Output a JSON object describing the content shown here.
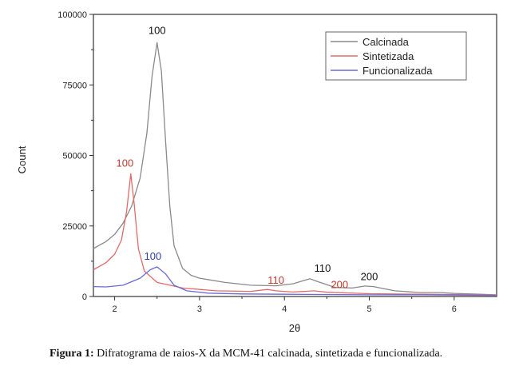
{
  "chart_data": {
    "type": "line",
    "xlabel": "2θ",
    "ylabel": "Count",
    "xlim": [
      1.75,
      6.5
    ],
    "ylim": [
      0,
      100000
    ],
    "x_ticks": [
      2,
      3,
      4,
      5,
      6
    ],
    "y_ticks": [
      0,
      25000,
      50000,
      75000,
      100000
    ],
    "y_tick_labels": [
      "0",
      "25000",
      "50000",
      "75000",
      "100000"
    ],
    "grid": false,
    "legend_position": "top-right",
    "series": [
      {
        "name": "Calcinada",
        "color": "#8a8a8a",
        "points": [
          [
            1.75,
            17000
          ],
          [
            1.9,
            19500
          ],
          [
            2.0,
            22000
          ],
          [
            2.1,
            26000
          ],
          [
            2.2,
            32000
          ],
          [
            2.3,
            42000
          ],
          [
            2.38,
            58000
          ],
          [
            2.44,
            78000
          ],
          [
            2.5,
            90000
          ],
          [
            2.55,
            80000
          ],
          [
            2.6,
            55000
          ],
          [
            2.65,
            32000
          ],
          [
            2.7,
            18000
          ],
          [
            2.8,
            10000
          ],
          [
            2.9,
            7500
          ],
          [
            3.0,
            6500
          ],
          [
            3.3,
            5000
          ],
          [
            3.6,
            4000
          ],
          [
            3.9,
            3800
          ],
          [
            4.1,
            4500
          ],
          [
            4.3,
            6300
          ],
          [
            4.4,
            5200
          ],
          [
            4.6,
            3200
          ],
          [
            4.8,
            3000
          ],
          [
            4.95,
            3700
          ],
          [
            5.05,
            3500
          ],
          [
            5.3,
            2000
          ],
          [
            5.6,
            1400
          ],
          [
            5.85,
            1400
          ],
          [
            6.0,
            1100
          ],
          [
            6.3,
            800
          ],
          [
            6.5,
            600
          ]
        ]
      },
      {
        "name": "Sintetizada",
        "color": "#e36a6a",
        "points": [
          [
            1.75,
            9500
          ],
          [
            1.9,
            12000
          ],
          [
            2.0,
            15000
          ],
          [
            2.08,
            20000
          ],
          [
            2.14,
            30000
          ],
          [
            2.19,
            43500
          ],
          [
            2.23,
            33000
          ],
          [
            2.28,
            17000
          ],
          [
            2.35,
            9000
          ],
          [
            2.5,
            5000
          ],
          [
            2.8,
            3000
          ],
          [
            3.2,
            2000
          ],
          [
            3.6,
            1800
          ],
          [
            3.8,
            2500
          ],
          [
            3.9,
            2000
          ],
          [
            4.1,
            1600
          ],
          [
            4.35,
            2000
          ],
          [
            4.5,
            1500
          ],
          [
            5.0,
            1000
          ],
          [
            5.6,
            800
          ],
          [
            6.0,
            700
          ],
          [
            6.5,
            500
          ]
        ]
      },
      {
        "name": "Funcionalizada",
        "color": "#6b6bd6",
        "points": [
          [
            1.75,
            3500
          ],
          [
            1.9,
            3400
          ],
          [
            2.1,
            4000
          ],
          [
            2.3,
            6500
          ],
          [
            2.42,
            9500
          ],
          [
            2.5,
            10500
          ],
          [
            2.6,
            8000
          ],
          [
            2.7,
            4000
          ],
          [
            2.85,
            2000
          ],
          [
            3.1,
            1200
          ],
          [
            3.5,
            900
          ],
          [
            4.0,
            800
          ],
          [
            4.5,
            700
          ],
          [
            5.0,
            600
          ],
          [
            5.6,
            600
          ],
          [
            6.0,
            500
          ],
          [
            6.5,
            400
          ]
        ]
      }
    ],
    "annotations": [
      {
        "text": "100",
        "x": 2.5,
        "y": 93000,
        "series": "Calcinada"
      },
      {
        "text": "100",
        "x": 2.12,
        "y": 46000,
        "series": "Sintetizada"
      },
      {
        "text": "100",
        "x": 2.45,
        "y": 13000,
        "series": "Funcionalizada"
      },
      {
        "text": "110",
        "x": 3.9,
        "y": 4500,
        "series": "Sintetizada"
      },
      {
        "text": "110",
        "x": 4.45,
        "y": 8800,
        "series": "Calcinada"
      },
      {
        "text": "200",
        "x": 4.65,
        "y": 3000,
        "series": "Sintetizada"
      },
      {
        "text": "200",
        "x": 5.0,
        "y": 5800,
        "series": "Calcinada"
      }
    ]
  },
  "caption": {
    "label": "Figura 1:",
    "text": " Difratograma de raios-X da MCM-41 calcinada, sintetizada e funcionalizada."
  }
}
